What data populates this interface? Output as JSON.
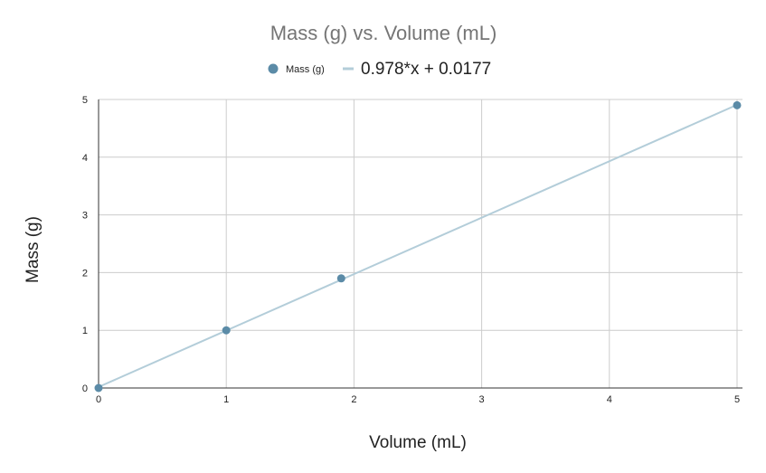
{
  "chart_data": {
    "type": "scatter",
    "title": "Mass (g) vs. Volume (mL)",
    "xlabel": "Volume (mL)",
    "ylabel": "Mass (g)",
    "xlim": [
      0,
      5
    ],
    "ylim": [
      0,
      5
    ],
    "xticks": [
      "0",
      "1",
      "2",
      "3",
      "4",
      "5"
    ],
    "yticks": [
      "0",
      "1",
      "2",
      "3",
      "4",
      "5"
    ],
    "grid": true,
    "legend_position": "top",
    "series": [
      {
        "name": "Mass (g)",
        "color": "#5b8ba7",
        "points": [
          {
            "x": 0,
            "y": 0
          },
          {
            "x": 1,
            "y": 1
          },
          {
            "x": 1.9,
            "y": 1.9
          },
          {
            "x": 5,
            "y": 4.9
          }
        ]
      }
    ],
    "trendline": {
      "label": "0.978*x + 0.0177",
      "slope": 0.978,
      "intercept": 0.0177,
      "color": "#b3cdd9"
    }
  }
}
